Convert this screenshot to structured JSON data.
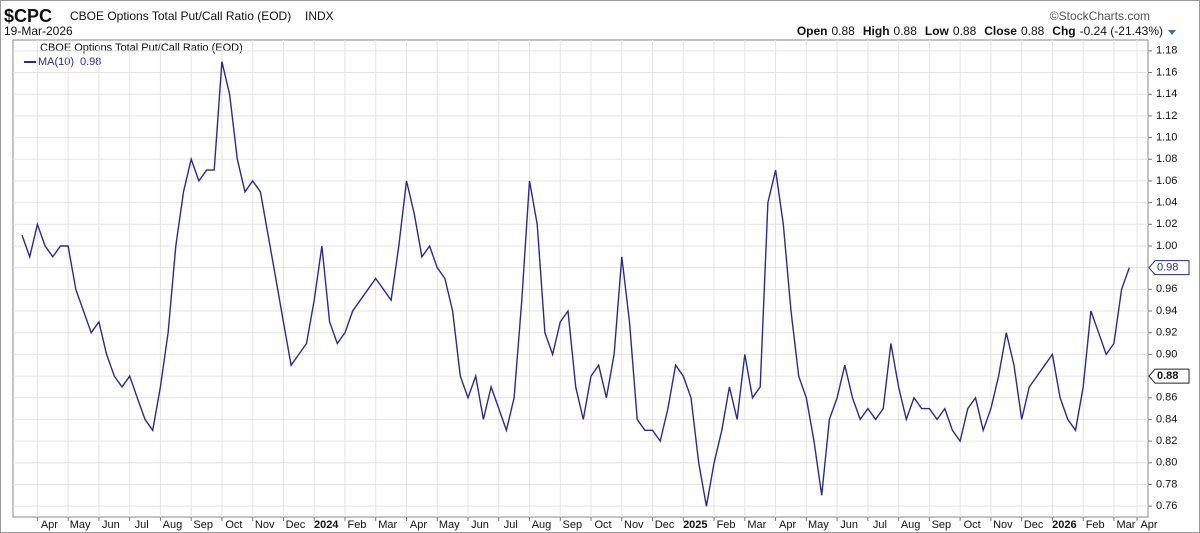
{
  "chart_data": {
    "type": "line",
    "symbol": "$CPC",
    "title": "CBOE Options Total Put/Call Ratio (EOD)",
    "exchange": "INDX",
    "date": "19-Mar-2026",
    "source": "©StockCharts.com",
    "quote": [
      {
        "label": "Open",
        "value": "0.88"
      },
      {
        "label": "High",
        "value": "0.88"
      },
      {
        "label": "Low",
        "value": "0.88"
      },
      {
        "label": "Close",
        "value": "0.88"
      },
      {
        "label": "Chg",
        "value": "-0.24 (-21.43%)"
      }
    ],
    "categories": [
      null,
      null,
      "Apr",
      null,
      null,
      null,
      "May",
      null,
      null,
      null,
      "Jun",
      null,
      null,
      null,
      "Jul",
      null,
      null,
      null,
      "Aug",
      null,
      null,
      null,
      "Sep",
      null,
      null,
      null,
      "Oct",
      null,
      null,
      null,
      "Nov",
      null,
      null,
      null,
      "Dec",
      null,
      null,
      null,
      "2024",
      null,
      null,
      null,
      "Feb",
      null,
      null,
      null,
      "Mar",
      null,
      null,
      null,
      "Apr",
      null,
      null,
      null,
      "May",
      null,
      null,
      null,
      "Jun",
      null,
      null,
      null,
      "Jul",
      null,
      null,
      null,
      "Aug",
      null,
      null,
      null,
      "Sep",
      null,
      null,
      null,
      "Oct",
      null,
      null,
      null,
      "Nov",
      null,
      null,
      null,
      "Dec",
      null,
      null,
      null,
      "2025",
      null,
      null,
      null,
      "Feb",
      null,
      null,
      null,
      "Mar",
      null,
      null,
      null,
      "Apr",
      null,
      null,
      null,
      "May",
      null,
      null,
      null,
      "Jun",
      null,
      null,
      null,
      "Jul",
      null,
      null,
      null,
      "Aug",
      null,
      null,
      null,
      "Sep",
      null,
      null,
      null,
      "Oct",
      null,
      null,
      null,
      "Nov",
      null,
      null,
      null,
      "Dec",
      null,
      null,
      null,
      "2026",
      null,
      null,
      null,
      "Feb",
      null,
      null,
      null,
      "Mar",
      null,
      null,
      "Apr"
    ],
    "series": [
      {
        "name": "MA(10)",
        "color": "#2a2a96",
        "values": [
          1.01,
          0.99,
          1.02,
          1.0,
          0.99,
          1.0,
          1.0,
          0.96,
          0.94,
          0.92,
          0.93,
          0.9,
          0.88,
          0.87,
          0.88,
          0.86,
          0.84,
          0.83,
          0.87,
          0.92,
          1.0,
          1.05,
          1.08,
          1.06,
          1.07,
          1.07,
          1.17,
          1.14,
          1.08,
          1.05,
          1.06,
          1.05,
          1.01,
          0.97,
          0.93,
          0.89,
          0.9,
          0.91,
          0.95,
          1.0,
          0.93,
          0.91,
          0.92,
          0.94,
          0.95,
          0.96,
          0.97,
          0.96,
          0.95,
          1.0,
          1.06,
          1.03,
          0.99,
          1.0,
          0.98,
          0.97,
          0.94,
          0.88,
          0.86,
          0.88,
          0.84,
          0.87,
          0.85,
          0.83,
          0.86,
          0.95,
          1.06,
          1.02,
          0.92,
          0.9,
          0.93,
          0.94,
          0.87,
          0.84,
          0.88,
          0.89,
          0.86,
          0.9,
          0.99,
          0.93,
          0.84,
          0.83,
          0.83,
          0.82,
          0.85,
          0.89,
          0.88,
          0.86,
          0.8,
          0.76,
          0.8,
          0.83,
          0.87,
          0.84,
          0.9,
          0.86,
          0.87,
          1.04,
          1.07,
          1.02,
          0.94,
          0.88,
          0.86,
          0.82,
          0.77,
          0.84,
          0.86,
          0.89,
          0.86,
          0.84,
          0.85,
          0.84,
          0.85,
          0.91,
          0.87,
          0.84,
          0.86,
          0.85,
          0.85,
          0.84,
          0.85,
          0.83,
          0.82,
          0.85,
          0.86,
          0.83,
          0.85,
          0.88,
          0.92,
          0.89,
          0.84,
          0.87,
          0.88,
          0.89,
          0.9,
          0.86,
          0.84,
          0.83,
          0.87,
          0.94,
          0.92,
          0.9,
          0.91,
          0.96,
          0.98,
          null
        ]
      }
    ],
    "markers": [
      0.98,
      0.88
    ],
    "ylim": [
      0.75,
      1.19
    ],
    "yticks": [
      0.76,
      0.78,
      {
        "value": 0.8,
        "label": "0.80"
      },
      0.82,
      0.84,
      0.86,
      0.88,
      {
        "value": 0.9,
        "label": "0.90"
      },
      0.92,
      0.94,
      0.96,
      0.98,
      {
        "value": 1,
        "label": "1.00"
      },
      1.02,
      1.04,
      1.06,
      1.08,
      {
        "value": 1.1,
        "label": "1.10"
      },
      1.12,
      1.14,
      1.16,
      1.18
    ],
    "grid": true
  }
}
